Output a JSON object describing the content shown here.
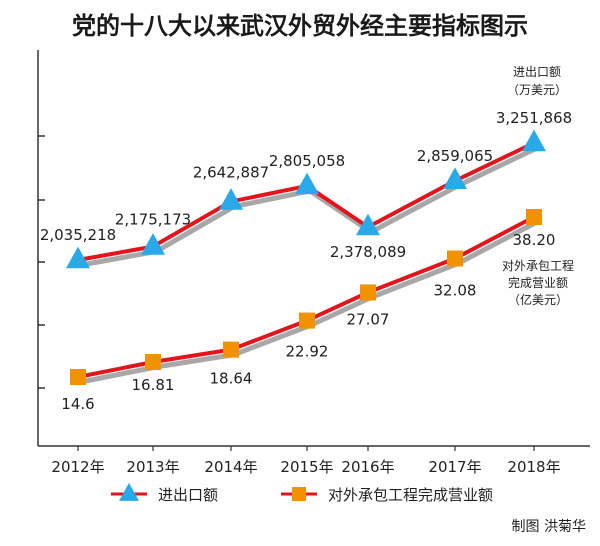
{
  "title": "党的十八大以来武汉外贸外经主要指标图示",
  "credit": "制图 洪菊华",
  "colors": {
    "line": "#e3141b",
    "shadow": "#a8a8a8",
    "triangle": "#29a9e8",
    "square": "#f39200",
    "axis": "#333333"
  },
  "chart_data": {
    "type": "line",
    "categories": [
      "2012年",
      "2013年",
      "2014年",
      "2015年",
      "2016年",
      "2017年",
      "2018年"
    ],
    "series": [
      {
        "name": "进出口额",
        "unit_label": [
          "进出口额",
          "（万美元）"
        ],
        "marker": "triangle",
        "values": [
          2035218,
          2175173,
          2642887,
          2805058,
          2378089,
          2859065,
          3251868
        ],
        "value_labels": [
          "2,035,218",
          "2,175,173",
          "2,642,887",
          "2,805,058",
          "2,378,089",
          "2,859,065",
          "3,251,868"
        ]
      },
      {
        "name": "对外承包工程完成营业额",
        "unit_label": [
          "对外承包工程",
          "完成营业额",
          "（亿美元）"
        ],
        "marker": "square",
        "values": [
          14.6,
          16.81,
          18.64,
          22.92,
          27.07,
          32.08,
          38.2
        ],
        "value_labels": [
          "14.6",
          "16.81",
          "18.64",
          "22.92",
          "27.07",
          "32.08",
          "38.20"
        ]
      }
    ],
    "legend_position": "bottom",
    "grid": false
  }
}
